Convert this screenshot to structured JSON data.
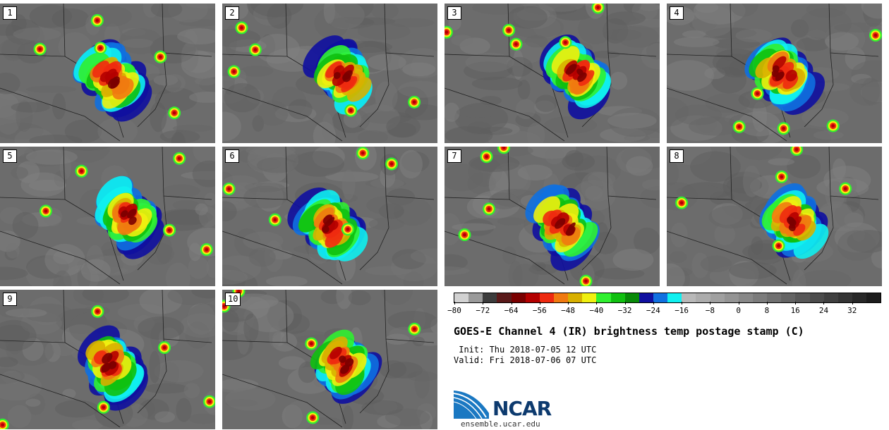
{
  "panels": [
    {
      "label": "1"
    },
    {
      "label": "2"
    },
    {
      "label": "3"
    },
    {
      "label": "4"
    },
    {
      "label": "5"
    },
    {
      "label": "6"
    },
    {
      "label": "7"
    },
    {
      "label": "8"
    },
    {
      "label": "9"
    },
    {
      "label": "10"
    }
  ],
  "colorbar": {
    "colors": [
      "#d2d2d2",
      "#9a9a9a",
      "#3c3c3c",
      "#5a1a1a",
      "#7a0000",
      "#b40000",
      "#ee2a10",
      "#f07a10",
      "#d8b000",
      "#f0f010",
      "#30f030",
      "#10c010",
      "#088a08",
      "#1010a0",
      "#1070e0",
      "#10f0f0",
      "#b8b8b8",
      "#acacac",
      "#a0a0a0",
      "#949494",
      "#888888",
      "#7c7c7c",
      "#707070",
      "#646464",
      "#585858",
      "#4c4c4c",
      "#404040",
      "#343434",
      "#282828",
      "#1c1c1c"
    ],
    "tick_labels": [
      "−80",
      "−72",
      "−64",
      "−56",
      "−48",
      "−40",
      "−32",
      "−24",
      "−16",
      "−8",
      "0",
      "8",
      "16",
      "24",
      "32"
    ]
  },
  "title": "GOES-E Channel 4 (IR) brightness temp postage stamp (C)",
  "init_line": " Init: Thu 2018-07-05 12 UTC",
  "valid_line": "Valid: Fri 2018-07-06 07 UTC",
  "logo_text": "NCAR",
  "website": "ensemble.ucar.edu"
}
